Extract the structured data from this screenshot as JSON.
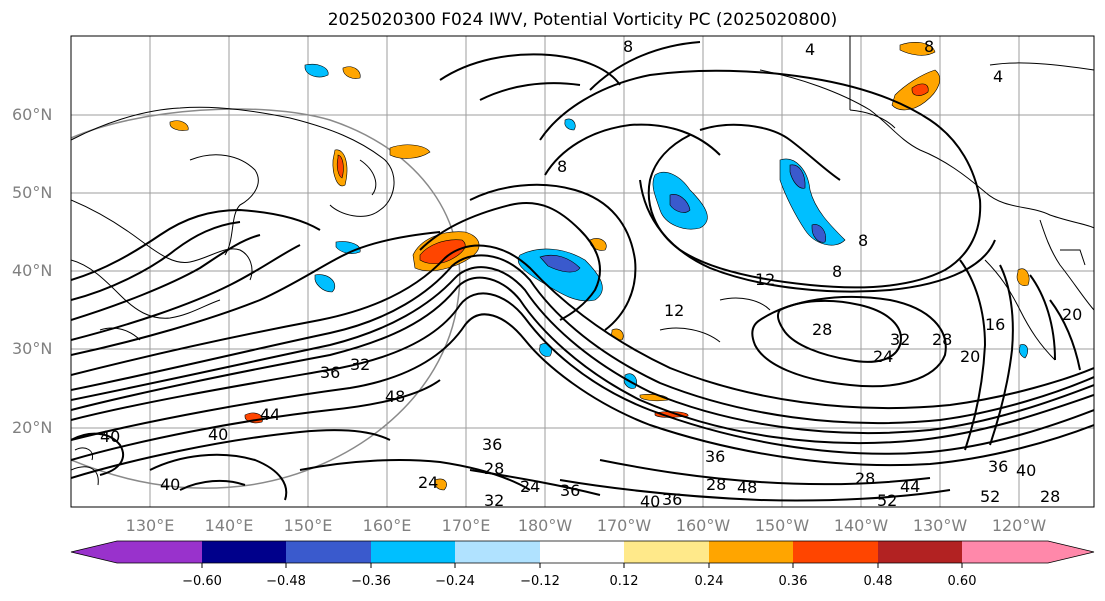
{
  "title": "2025020300 F024 IWV, Potential Vorticity PC (2025020800)",
  "map": {
    "lat_labels": [
      "60°N",
      "50°N",
      "40°N",
      "30°N",
      "20°N"
    ],
    "lon_labels": [
      "130°E",
      "140°E",
      "150°E",
      "160°E",
      "170°E",
      "180°W",
      "170°W",
      "160°W",
      "150°W",
      "140°W",
      "130°W",
      "120°W"
    ],
    "contour_labels": [
      "8",
      "4",
      "4",
      "8",
      "8",
      "8",
      "8",
      "12",
      "12",
      "28",
      "32",
      "24",
      "28",
      "16",
      "20",
      "36",
      "32",
      "48",
      "44",
      "40",
      "40",
      "36",
      "28",
      "24",
      "32",
      "24",
      "36",
      "40",
      "36",
      "28",
      "48",
      "28",
      "52",
      "44",
      "52",
      "36",
      "40",
      "28",
      "40",
      "36",
      "20"
    ]
  },
  "colorbar": {
    "colors": [
      "#9932cc",
      "#00008b",
      "#3a5acd",
      "#00bfff",
      "#b0e2ff",
      "#ffffff",
      "#ffe98a",
      "#ffa500",
      "#ff4500",
      "#b22222",
      "#ff88aa"
    ],
    "tick_labels": [
      "−0.60",
      "−0.48",
      "−0.36",
      "−0.24",
      "−0.12",
      "0.12",
      "0.24",
      "0.36",
      "0.48",
      "0.60"
    ]
  }
}
